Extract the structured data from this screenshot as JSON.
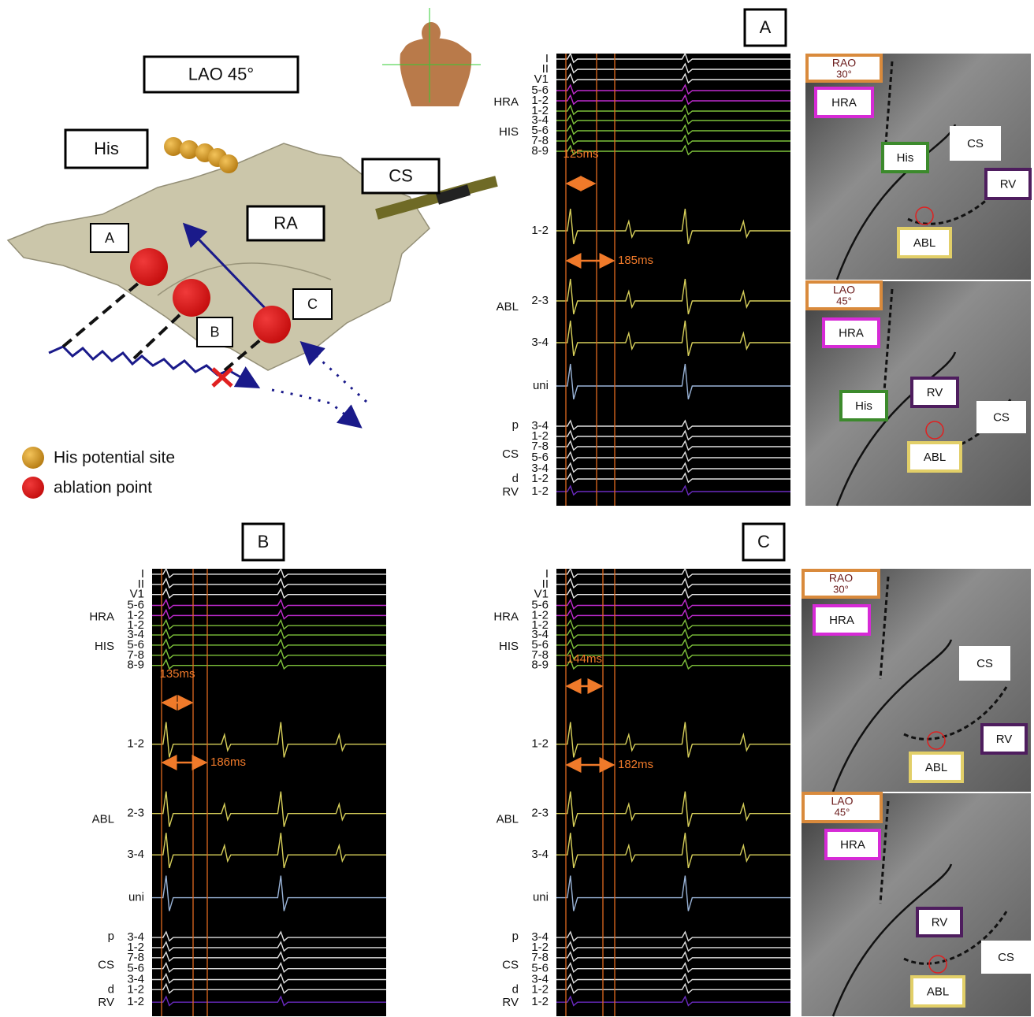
{
  "map": {
    "view": "LAO 45°",
    "labels": {
      "his": "His",
      "cs": "CS",
      "ra": "RA",
      "a": "A",
      "b": "B",
      "c": "C"
    },
    "legend": [
      "His potential site",
      "ablation point"
    ]
  },
  "panels": [
    {
      "label": "A",
      "groups": [
        "HRA",
        "HIS",
        "ABL",
        "p",
        "CS",
        "d",
        "RV"
      ],
      "leads": [
        "I",
        "II",
        "V1",
        "5-6",
        "1-2",
        "1-2",
        "3-4",
        "5-6",
        "7-8",
        "8-9",
        "1-2",
        "2-3",
        "3-4",
        "uni",
        "3-4",
        "1-2",
        "7-8",
        "5-6",
        "3-4",
        "1-2",
        "1-2"
      ],
      "measurements": [
        "125ms",
        "185ms"
      ],
      "fluoro": [
        {
          "view": "RAO",
          "angle": "30°",
          "tags": [
            {
              "text": "HRA",
              "color": "#d62ad6"
            },
            {
              "text": "His",
              "color": "#3c8a2c"
            },
            {
              "text": "CS",
              "color": "#ffffff"
            },
            {
              "text": "RV",
              "color": "#4e1d5e"
            },
            {
              "text": "ABL",
              "color": "#e2cf68"
            }
          ]
        },
        {
          "view": "LAO",
          "angle": "45°",
          "tags": [
            {
              "text": "HRA",
              "color": "#d62ad6"
            },
            {
              "text": "His",
              "color": "#3c8a2c"
            },
            {
              "text": "RV",
              "color": "#4e1d5e"
            },
            {
              "text": "CS",
              "color": "#ffffff"
            },
            {
              "text": "ABL",
              "color": "#e2cf68"
            }
          ]
        }
      ]
    },
    {
      "label": "B",
      "groups": [
        "HRA",
        "HIS",
        "ABL",
        "p",
        "CS",
        "d",
        "RV"
      ],
      "leads": [
        "I",
        "II",
        "V1",
        "5-6",
        "1-2",
        "1-2",
        "3-4",
        "5-6",
        "7-8",
        "8-9",
        "1-2",
        "2-3",
        "3-4",
        "uni",
        "3-4",
        "1-2",
        "7-8",
        "5-6",
        "3-4",
        "1-2",
        "1-2"
      ],
      "measurements": [
        "135ms",
        "186ms"
      ]
    },
    {
      "label": "C",
      "groups": [
        "HRA",
        "HIS",
        "ABL",
        "p",
        "CS",
        "d",
        "RV"
      ],
      "leads": [
        "I",
        "II",
        "V1",
        "5-6",
        "1-2",
        "1-2",
        "3-4",
        "5-6",
        "7-8",
        "8-9",
        "1-2",
        "2-3",
        "3-4",
        "uni",
        "3-4",
        "1-2",
        "7-8",
        "5-6",
        "3-4",
        "1-2",
        "1-2"
      ],
      "measurements": [
        "144ms",
        "182ms"
      ],
      "fluoro": [
        {
          "view": "RAO",
          "angle": "30°",
          "tags": [
            {
              "text": "HRA",
              "color": "#d62ad6"
            },
            {
              "text": "CS",
              "color": "#ffffff"
            },
            {
              "text": "RV",
              "color": "#4e1d5e"
            },
            {
              "text": "ABL",
              "color": "#e2cf68"
            }
          ]
        },
        {
          "view": "LAO",
          "angle": "45°",
          "tags": [
            {
              "text": "HRA",
              "color": "#d62ad6"
            },
            {
              "text": "RV",
              "color": "#4e1d5e"
            },
            {
              "text": "CS",
              "color": "#ffffff"
            },
            {
              "text": "ABL",
              "color": "#e2cf68"
            }
          ]
        }
      ]
    }
  ]
}
